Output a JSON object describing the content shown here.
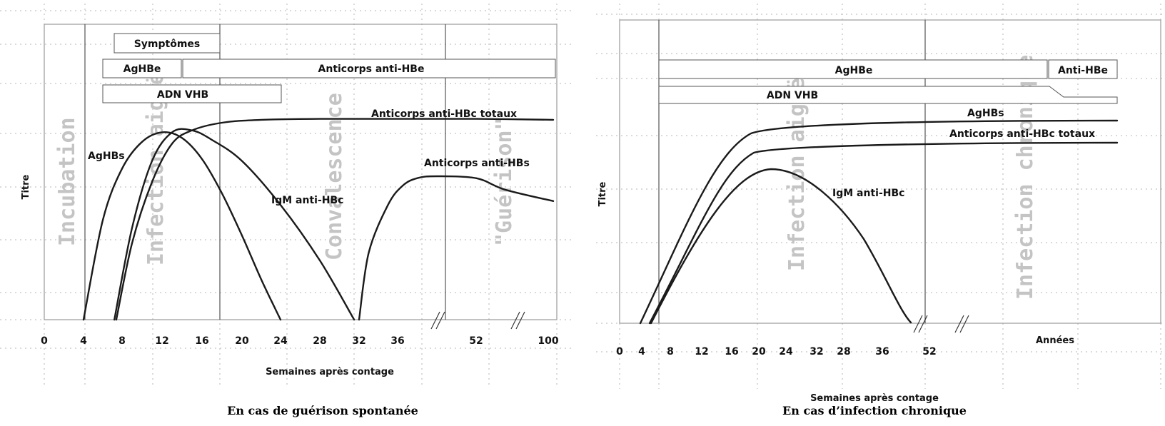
{
  "chart_data": [
    {
      "type": "line",
      "caption": "En cas de guérison spontanée",
      "xlabel": "Semaines après contage",
      "ylabel": "Titre",
      "x_ticks": [
        "0",
        "4",
        "8",
        "12",
        "16",
        "20",
        "24",
        "28",
        "32",
        "36",
        "52",
        "100"
      ],
      "axis_breaks": [
        "36-52",
        "52-100"
      ],
      "grid": true,
      "phases": [
        "Incubation",
        "Infection aiguë",
        "Convalescence",
        "\"Guérison\""
      ],
      "bars": [
        {
          "label": "Symptômes",
          "start": 7.2,
          "end": 18
        },
        {
          "label": "AgHBe",
          "start": 6,
          "end": 14
        },
        {
          "label": "Anticorps anti-HBe",
          "start": 14,
          "end": 100
        },
        {
          "label": "ADN VHB",
          "start": 6,
          "end": 24
        }
      ],
      "series": [
        {
          "name": "AgHBs",
          "x": [
            4,
            6,
            8,
            10,
            12,
            14,
            16,
            18,
            20,
            22,
            24
          ],
          "y": [
            0,
            0.52,
            0.79,
            0.93,
            0.98,
            0.95,
            0.84,
            0.66,
            0.44,
            0.21,
            0
          ]
        },
        {
          "name": "IgM anti-HBc",
          "x": [
            7.2,
            9,
            11,
            13,
            15,
            17,
            20,
            24,
            28,
            31.5
          ],
          "y": [
            0,
            0.48,
            0.83,
            0.98,
            0.99,
            0.94,
            0.83,
            0.6,
            0.31,
            0
          ]
        },
        {
          "name": "Anticorps anti-HBc totaux",
          "x": [
            7.4,
            9,
            11,
            13,
            15,
            18,
            22,
            28,
            36,
            52,
            100
          ],
          "y": [
            0,
            0.4,
            0.72,
            0.92,
            0.99,
            1.03,
            1.045,
            1.05,
            1.05,
            1.05,
            1.045
          ]
        },
        {
          "name": "Anticorps anti-HBs",
          "x": [
            32,
            33,
            35,
            37,
            40,
            44,
            52,
            70,
            100
          ],
          "y": [
            0,
            0.35,
            0.6,
            0.7,
            0.74,
            0.75,
            0.74,
            0.68,
            0.62
          ]
        }
      ]
    },
    {
      "type": "line",
      "caption": "En cas d’infection chronique",
      "xlabel": "Semaines après contage",
      "xlabel2": "Années",
      "ylabel": "Titre",
      "x_ticks": [
        "0",
        "4",
        "8",
        "12",
        "16",
        "20",
        "24",
        "32",
        "28",
        "36",
        "52"
      ],
      "grid": true,
      "phases": [
        "Infection aiguë",
        "Infection chronique"
      ],
      "bars": [
        {
          "label": "AgHBe",
          "start": 6,
          "end": "Années"
        },
        {
          "label": "Anti-HBe",
          "start": "Années",
          "end": "Années"
        },
        {
          "label": "ADN VHB",
          "start": 6,
          "end": "Années"
        }
      ],
      "series": [
        {
          "name": "AgHBs",
          "y_end": 1.18
        },
        {
          "name": "Anticorps anti-HBc totaux",
          "y_end": 1.05
        },
        {
          "name": "IgM anti-HBc",
          "x_peak": 20,
          "x_end": 37
        }
      ]
    }
  ]
}
